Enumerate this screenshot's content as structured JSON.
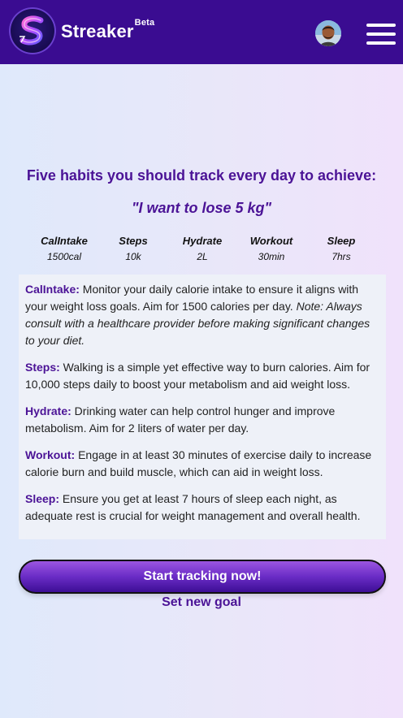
{
  "header": {
    "app_name": "Streaker",
    "badge": "Beta",
    "logo_icon": "lightning-s-logo",
    "avatar_icon": "user-avatar",
    "menu_icon": "hamburger-menu-icon",
    "background_color": "#3a0c91"
  },
  "main": {
    "headline": "Five habits you should track every day to achieve:",
    "goal": "\"I want to lose 5 kg\"",
    "habits": [
      {
        "name": "CalIntake",
        "value": "1500cal"
      },
      {
        "name": "Steps",
        "value": "10k"
      },
      {
        "name": "Hydrate",
        "value": "2L"
      },
      {
        "name": "Workout",
        "value": "30min"
      },
      {
        "name": "Sleep",
        "value": "7hrs"
      }
    ],
    "details": [
      {
        "term": "CalIntake:",
        "text": " Monitor your daily calorie intake to ensure it aligns with your weight loss goals. Aim for 1500 calories per day. ",
        "note": "Note: Always consult with a healthcare provider before making significant changes to your diet."
      },
      {
        "term": "Steps:",
        "text": " Walking is a simple yet effective way to burn calories. Aim for 10,000 steps daily to boost your metabolism and aid weight loss."
      },
      {
        "term": "Hydrate:",
        "text": " Drinking water can help control hunger and improve metabolism. Aim for 2 liters of water per day."
      },
      {
        "term": "Workout:",
        "text": " Engage in at least 30 minutes of exercise daily to increase calorie burn and build muscle, which can aid in weight loss."
      },
      {
        "term": "Sleep:",
        "text": " Ensure you get at least 7 hours of sleep each night, as adequate rest is crucial for weight management and overall health."
      }
    ],
    "cta_label": "Start tracking now!",
    "secondary_label": "Set new goal",
    "accent_color": "#4b1396"
  }
}
